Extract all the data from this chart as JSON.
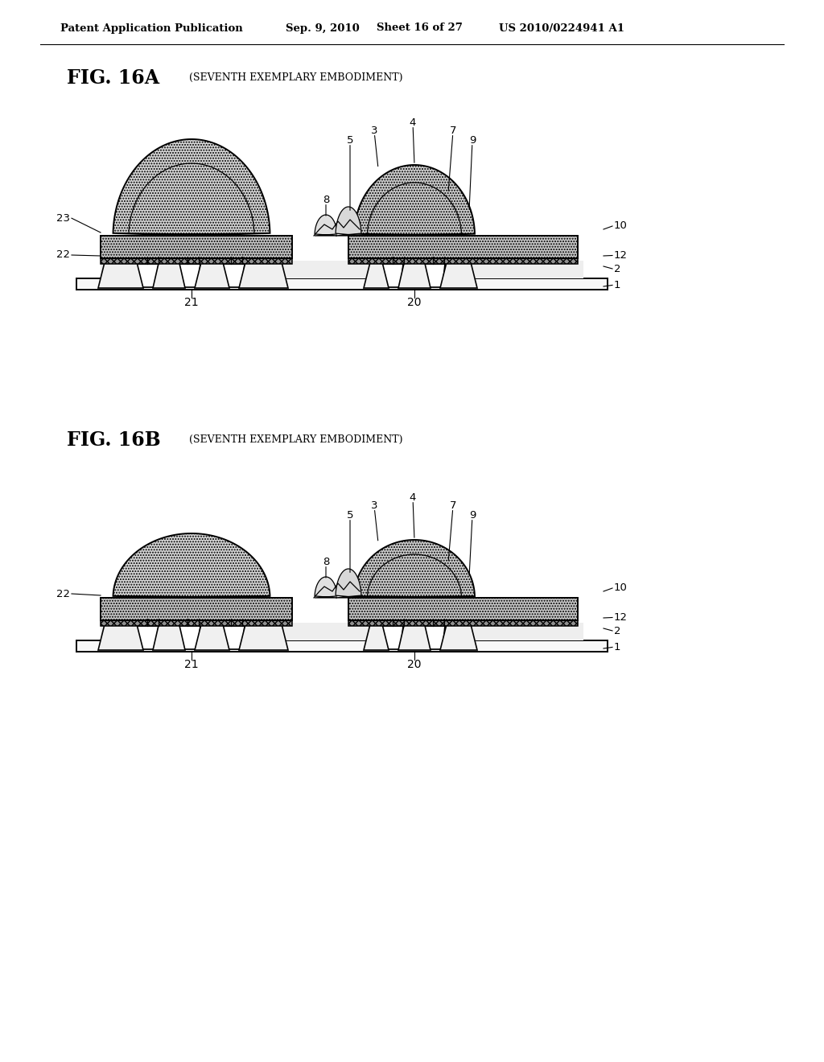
{
  "bg_color": "#ffffff",
  "header_text": "Patent Application Publication",
  "header_date": "Sep. 9, 2010",
  "header_sheet": "Sheet 16 of 27",
  "header_patent": "US 2010/0224941 A1",
  "fig_a_label": "FIG. 16A",
  "fig_a_subtitle": "(SEVENTH EXEMPLARY EMBODIMENT)",
  "fig_b_label": "FIG. 16B",
  "fig_b_subtitle": "(SEVENTH EXEMPLARY EMBODIMENT)"
}
